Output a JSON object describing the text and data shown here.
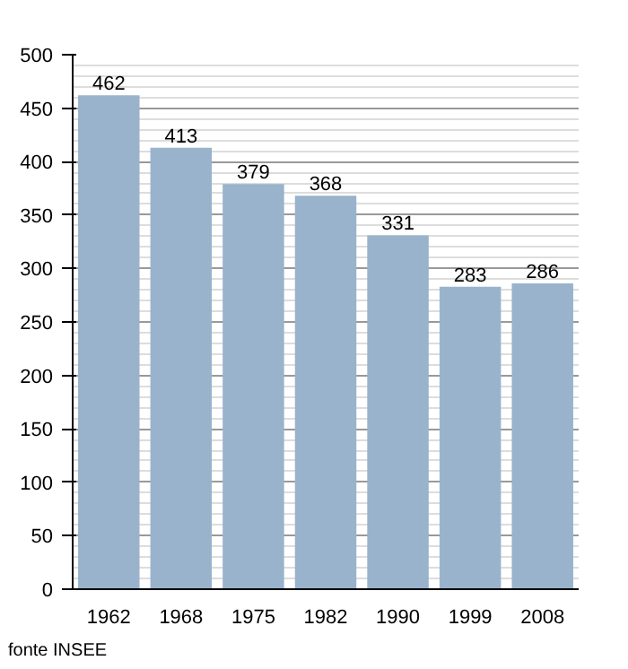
{
  "chart_data": {
    "type": "bar",
    "categories": [
      "1962",
      "1968",
      "1975",
      "1982",
      "1990",
      "1999",
      "2008"
    ],
    "values": [
      462,
      413,
      379,
      368,
      331,
      283,
      286
    ],
    "color": "#99b3cc",
    "ylim": [
      0,
      500
    ],
    "yticks": [
      0,
      50,
      100,
      150,
      200,
      250,
      300,
      350,
      400,
      450,
      500
    ],
    "grid": "y",
    "data_labels": true,
    "annotations": [
      "fonte INSEE"
    ]
  }
}
